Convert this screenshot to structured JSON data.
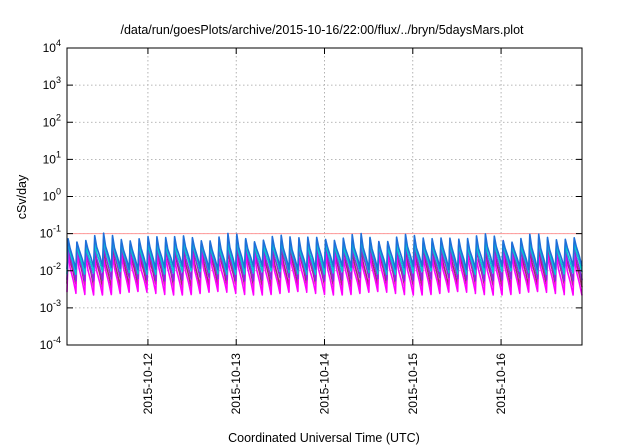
{
  "chart_data": {
    "type": "line",
    "title": "/data/run/goesPlots/archive/2015-10-16/22:00/flux/../bryn/5daysMars.plot",
    "xlabel": "Coordinated Universal Time (UTC)",
    "ylabel": "cSv/day",
    "yscale": "log",
    "ylim": [
      0.0001,
      10000
    ],
    "yticks": [
      {
        "base": "10",
        "exp": "-4"
      },
      {
        "base": "10",
        "exp": "-3"
      },
      {
        "base": "10",
        "exp": "-2"
      },
      {
        "base": "10",
        "exp": "-1"
      },
      {
        "base": "10",
        "exp": "0"
      },
      {
        "base": "10",
        "exp": "1"
      },
      {
        "base": "10",
        "exp": "2"
      },
      {
        "base": "10",
        "exp": "3"
      },
      {
        "base": "10",
        "exp": "4"
      }
    ],
    "xlim": [
      "2015-10-11T02:00",
      "2015-10-16T22:00"
    ],
    "xticks": [
      "2015-10-12",
      "2015-10-13",
      "2015-10-14",
      "2015-10-15",
      "2015-10-16"
    ],
    "grid": true,
    "threshold_line": {
      "value": 0.1,
      "color": "#ff9999"
    },
    "cycles_per_day": 10,
    "series": [
      {
        "color": "#a0306c",
        "peak": 0.05,
        "trough": 0.004
      },
      {
        "color": "#ff00ff",
        "peak": 0.03,
        "trough": 0.0025
      },
      {
        "color": "#8a2be2",
        "peak": 0.06,
        "trough": 0.006
      },
      {
        "color": "#00ced1",
        "peak": 0.07,
        "trough": 0.009
      },
      {
        "color": "#1e6fd9",
        "peak": 0.09,
        "trough": 0.012
      }
    ]
  }
}
